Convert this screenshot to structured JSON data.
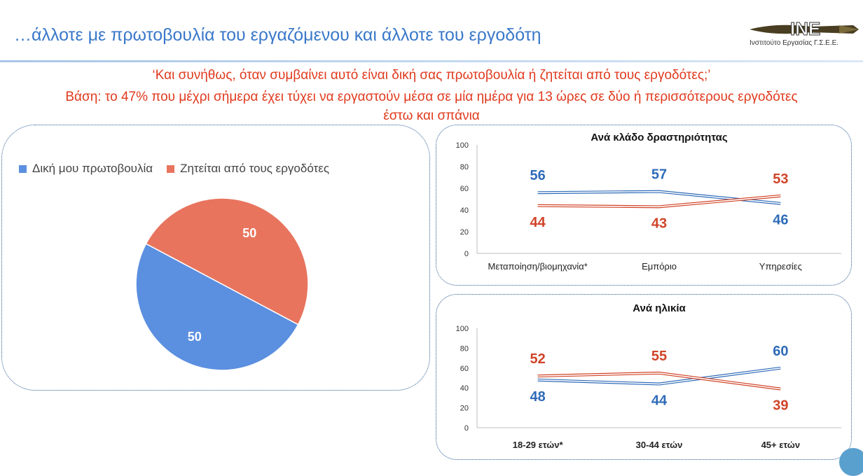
{
  "header": {
    "title": "…άλλοτε με πρωτοβουλία του εργαζόμενου και άλλοτε του εργοδότη",
    "logo_text": "INE",
    "logo_subtitle": "Ινστιτούτο Εργασίας Γ.Σ.Ε.Ε."
  },
  "subtitle": {
    "line1": "‘Και συνήθως, όταν συμβαίνει αυτό είναι δική σας πρωτοβουλία ή ζητείται από τους εργοδότες;’",
    "line2": "Βάση: το 47% που μέχρι σήμερα έχει τύχει να εργαστούν μέσα σε μία ημέρα για 13 ώρες σε δύο ή περισσότερους εργοδότες",
    "line3": "έστω και σπάνια"
  },
  "colors": {
    "blue": "#5b8fe0",
    "red": "#e8745e",
    "line_blue": "#2f6bb8",
    "line_red": "#d04428",
    "accent": "#3a78c9",
    "subtitle_red": "#e03a1e"
  },
  "chart_data": [
    {
      "type": "pie",
      "categories": [
        "Δική μου πρωτοβουλία",
        "Ζητείται από τους εργοδότες"
      ],
      "values": [
        50,
        50
      ],
      "legend": "top-left"
    },
    {
      "type": "line",
      "title": "Ανά κλάδο δραστηριότητας",
      "categories": [
        "Μεταποίηση/βιομηχανία*",
        "Εμπόριο",
        "Υπηρεσίες"
      ],
      "series": [
        {
          "values": [
            56,
            57,
            46
          ]
        },
        {
          "values": [
            44,
            43,
            53
          ]
        }
      ],
      "ylim": [
        0,
        100
      ],
      "yticks": [
        0,
        20,
        40,
        60,
        80,
        100
      ],
      "grid": false
    },
    {
      "type": "line",
      "title": "Ανά ηλικία",
      "categories": [
        "18-29 ετών*",
        "30-44 ετών",
        "45+ ετών"
      ],
      "series": [
        {
          "values": [
            48,
            44,
            60
          ]
        },
        {
          "values": [
            52,
            55,
            39
          ]
        }
      ],
      "ylim": [
        0,
        100
      ],
      "yticks": [
        0,
        20,
        40,
        60,
        80,
        100
      ],
      "grid": false
    }
  ]
}
